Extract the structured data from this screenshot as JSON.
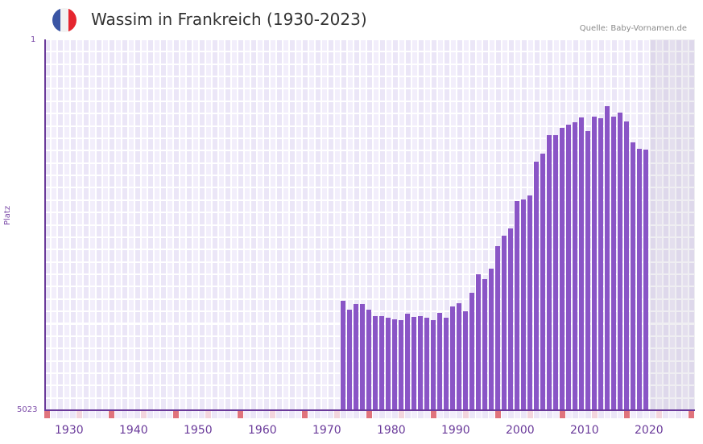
{
  "header": {
    "title": "Wassim in Frankreich (1930-2023)",
    "source": "Quelle: Baby-Vornamen.de",
    "flag": {
      "name": "france-flag",
      "colors": [
        "#3a55a4",
        "#f2f2f2",
        "#e5262f"
      ]
    }
  },
  "colors": {
    "bar": "#8a55c6",
    "axis": "#6a3a9a",
    "grid_a": "#f2eefb",
    "grid_b": "#ebe6f7",
    "marker_major": "#e0737c",
    "marker_minor": "#f3d5dd",
    "future_shade": "rgba(150,140,170,0.15)"
  },
  "axes": {
    "y_top_label": "1",
    "y_bottom_label": "5023",
    "y_title": "Platz",
    "x_ticks": [
      "1930",
      "1940",
      "1950",
      "1960",
      "1970",
      "1980",
      "1990",
      "2000",
      "2010",
      "2020"
    ]
  },
  "chart_data": {
    "type": "bar",
    "title": "Wassim in Frankreich (1930-2023)",
    "xlabel": "",
    "ylabel": "Platz",
    "y_inverted": true,
    "ylim": [
      1,
      5023
    ],
    "x_range": [
      1928,
      2028
    ],
    "grid": true,
    "future_shaded_from": 2022,
    "categories": [
      1974,
      1975,
      1976,
      1977,
      1978,
      1979,
      1980,
      1981,
      1982,
      1983,
      1984,
      1985,
      1986,
      1987,
      1988,
      1989,
      1990,
      1991,
      1992,
      1993,
      1994,
      1995,
      1996,
      1997,
      1998,
      1999,
      2000,
      2001,
      2002,
      2003,
      2004,
      2005,
      2006,
      2007,
      2008,
      2009,
      2010,
      2011,
      2012,
      2013,
      2014,
      2015,
      2016,
      2017,
      2018,
      2019,
      2020,
      2021
    ],
    "values": [
      3542,
      3661,
      3585,
      3585,
      3661,
      3748,
      3748,
      3770,
      3792,
      3803,
      3716,
      3759,
      3748,
      3770,
      3803,
      3705,
      3770,
      3618,
      3574,
      3683,
      3433,
      3182,
      3247,
      3106,
      2801,
      2659,
      2561,
      2191,
      2169,
      2114,
      1657,
      1548,
      1297,
      1297,
      1199,
      1155,
      1123,
      1057,
      1243,
      1047,
      1069,
      905,
      1047,
      992,
      1112,
      1395,
      1483,
      1494
    ],
    "x_ticks": [
      1930,
      1940,
      1950,
      1960,
      1970,
      1980,
      1990,
      2000,
      2010,
      2020
    ],
    "y_ticks": [
      1,
      5023
    ]
  }
}
